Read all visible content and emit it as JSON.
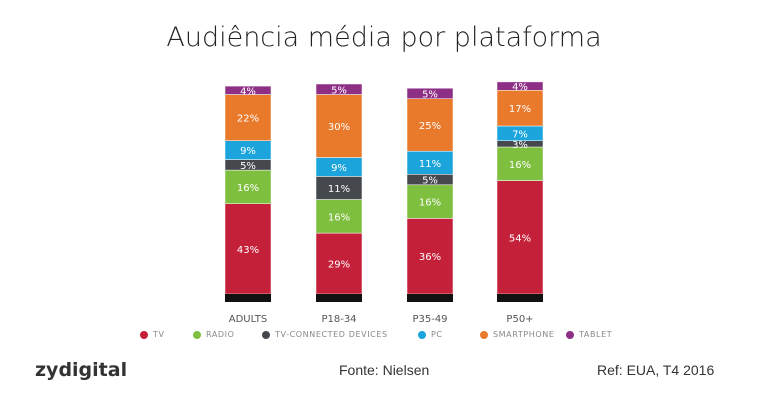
{
  "chart_data": {
    "type": "bar",
    "stacked": true,
    "title": "Audiência média por plataforma",
    "categories": [
      "ADULTS",
      "P18-34",
      "P35-49",
      "P50+"
    ],
    "series": [
      {
        "name": "TV",
        "color": "#c4203a",
        "values": [
          43,
          29,
          36,
          54
        ]
      },
      {
        "name": "RADIO",
        "color": "#7fbf3f",
        "values": [
          16,
          16,
          16,
          16
        ]
      },
      {
        "name": "TV-CONNECTED DEVICES",
        "color": "#45484d",
        "values": [
          5,
          11,
          5,
          3
        ]
      },
      {
        "name": "PC",
        "color": "#1ba5dc",
        "values": [
          9,
          9,
          11,
          7
        ]
      },
      {
        "name": "SMARTPHONE",
        "color": "#e97a2c",
        "values": [
          22,
          30,
          25,
          17
        ]
      },
      {
        "name": "TABLET",
        "color": "#8e2f86",
        "values": [
          4,
          5,
          5,
          4
        ]
      }
    ],
    "value_suffix": "%",
    "legend_position": "bottom",
    "grid": false
  },
  "footer": {
    "logo": "zydigital",
    "source": "Fonte: Nielsen",
    "ref": "Ref: EUA, T4 2016"
  }
}
